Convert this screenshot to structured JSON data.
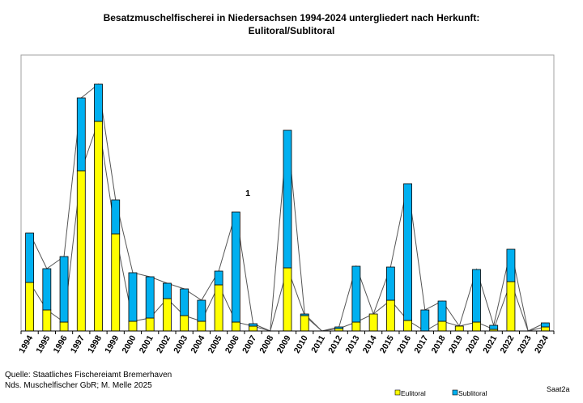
{
  "chart_data": {
    "type": "bar",
    "stacked": true,
    "title": "Besatzmuschelfischerei in Niedersachsen 1994-2024 untergliedert nach Herkunft:",
    "subtitle": "Eulitoral/Sublitoral",
    "xlabel": "",
    "ylabel": "",
    "y_axis_labels_shown": false,
    "grid": false,
    "legend_position": "bottom-right",
    "categories": [
      "1994",
      "1995",
      "1996",
      "1997",
      "1998",
      "1999",
      "2000",
      "2001",
      "2002",
      "2003",
      "2004",
      "2005",
      "2006",
      "2007",
      "2008",
      "2009",
      "2010",
      "2011",
      "2012",
      "2013",
      "2014",
      "2015",
      "2016",
      "2017",
      "2018",
      "2019",
      "2020",
      "2021",
      "2022",
      "2023",
      "2024"
    ],
    "series": [
      {
        "name": "Eulitoral",
        "color": "#ffff00",
        "values": [
          60,
          26,
          11,
          198,
          259,
          120,
          12,
          16,
          40,
          19,
          12,
          57,
          11,
          6,
          0,
          78,
          19,
          0,
          3,
          11,
          21,
          38,
          13,
          0,
          12,
          6,
          11,
          2,
          61,
          0,
          5
        ]
      },
      {
        "name": "Sublitoral",
        "color": "#00b0f0",
        "values": [
          61,
          51,
          81,
          90,
          46,
          42,
          60,
          51,
          19,
          33,
          26,
          17,
          136,
          3,
          0,
          170,
          2,
          0,
          2,
          69,
          0,
          41,
          169,
          26,
          25,
          0,
          65,
          5,
          40,
          0,
          5
        ]
      }
    ],
    "annotations": [
      {
        "text": "1",
        "category": "2006"
      }
    ],
    "source_lines": [
      "Quelle: Staatliches Fischereiamt Bremerhaven",
      "Nds. Muschelfischer GbR; M. Melle 2025"
    ],
    "code": "Saat2a"
  }
}
